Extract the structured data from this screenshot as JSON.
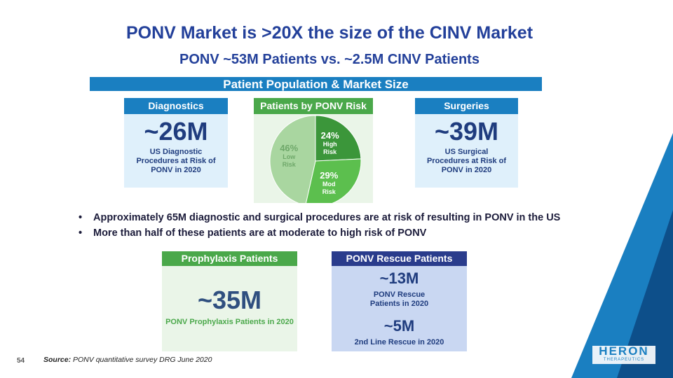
{
  "title": "PONV Market is >20X the size of the CINV Market",
  "subtitle": "PONV ~53M Patients vs. ~2.5M CINV Patients",
  "banner": "Patient Population & Market Size",
  "diagnostics": {
    "header": "Diagnostics",
    "value": "~26M",
    "text": "US Diagnostic Procedures at Risk of PONV in 2020"
  },
  "surgeries": {
    "header": "Surgeries",
    "value": "~39M",
    "text": "US Surgical Procedures at Risk of PONV in 2020"
  },
  "chart_data": {
    "type": "pie",
    "title": "Patients by PONV Risk",
    "categories": [
      "High Risk",
      "Mod Risk",
      "Low Risk"
    ],
    "values": [
      24,
      29,
      46
    ],
    "value_labels": [
      "24%",
      "29%",
      "46%"
    ],
    "colors": [
      "#3b963a",
      "#5cbf4e",
      "#a9d6a0"
    ]
  },
  "bullets": [
    "Approximately 65M diagnostic and surgical procedures are at risk of resulting in PONV in the US",
    "More than half of these patients are at moderate to high risk of PONV"
  ],
  "prophylaxis": {
    "header": "Prophylaxis Patients",
    "value": "~35M",
    "text": "PONV Prophylaxis Patients in 2020"
  },
  "rescue": {
    "header": "PONV Rescue Patients",
    "value1": "~13M",
    "text1": "PONV Rescue Patients in 2020",
    "value2": "~5M",
    "text2": "2nd Line Rescue in 2020"
  },
  "footer": {
    "page": "54",
    "source_label": "Source:",
    "source_text": "PONV quantitative survey DRG June 2020"
  },
  "logo": {
    "name": "HERON",
    "tagline": "THERAPEUTICS"
  }
}
